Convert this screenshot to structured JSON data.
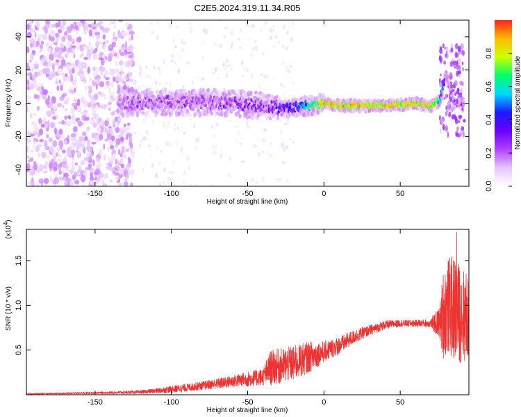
{
  "title": "C2E5.2024.319.11.34.R05",
  "chart_data": [
    {
      "type": "heatmap",
      "name": "spectrogram",
      "xlabel": "Height of straight line (km)",
      "ylabel": "Frequency (Hz)",
      "xlim": [
        -195,
        95
      ],
      "ylim": [
        -50,
        50
      ],
      "xticks": [
        -150,
        -100,
        -50,
        0,
        50
      ],
      "yticks": [
        -40,
        -20,
        0,
        20,
        40
      ],
      "colorbar": {
        "label": "Normalized spectral amplitude",
        "range": [
          0,
          1
        ],
        "ticks": [
          0.0,
          0.2,
          0.4,
          0.6,
          0.8
        ],
        "tick_labels": [
          "0.0",
          "0.2",
          "0.4",
          "0.6",
          "0.8"
        ],
        "colors": [
          "#ffffff",
          "#e6c6ff",
          "#b040ff",
          "#6a00ff",
          "#1a1aff",
          "#00d8ff",
          "#00ff66",
          "#ccff00",
          "#ffbb00",
          "#ff2020"
        ]
      },
      "ridge": [
        {
          "x": -135,
          "f": 0.0,
          "a": 0.25
        },
        {
          "x": -120,
          "f": 0.5,
          "a": 0.3
        },
        {
          "x": -100,
          "f": 0.5,
          "a": 0.3
        },
        {
          "x": -80,
          "f": 0.5,
          "a": 0.32
        },
        {
          "x": -60,
          "f": 0.0,
          "a": 0.35
        },
        {
          "x": -40,
          "f": -1.5,
          "a": 0.35
        },
        {
          "x": -25,
          "f": -3.0,
          "a": 0.45
        },
        {
          "x": -15,
          "f": -2.0,
          "a": 0.6
        },
        {
          "x": -5,
          "f": -1.0,
          "a": 0.8
        },
        {
          "x": 0,
          "f": 0.0,
          "a": 0.95
        },
        {
          "x": 10,
          "f": -1.5,
          "a": 0.95
        },
        {
          "x": 30,
          "f": -1.5,
          "a": 0.95
        },
        {
          "x": 50,
          "f": -1.0,
          "a": 0.9
        },
        {
          "x": 60,
          "f": 0.0,
          "a": 0.95
        },
        {
          "x": 70,
          "f": -2.0,
          "a": 0.9
        },
        {
          "x": 76,
          "f": 2.0,
          "a": 0.7
        },
        {
          "x": 80,
          "f": 18.0,
          "a": 0.3
        },
        {
          "x": 85,
          "f": 0.0,
          "a": 0.35
        },
        {
          "x": 92,
          "f": 0.0,
          "a": 0.3
        }
      ]
    },
    {
      "type": "line",
      "name": "snr",
      "xlabel": "Height of straight line (km)",
      "ylabel": "SNR (10 * v/v)",
      "multiplier": "(x10^4)",
      "multiplier_base": "(x10",
      "multiplier_exp": "4",
      "multiplier_close": ")",
      "xlim": [
        -195,
        95
      ],
      "ylim": [
        0,
        1.85
      ],
      "xticks": [
        -150,
        -100,
        -50,
        0,
        50
      ],
      "yticks": [
        0.5,
        1.0,
        1.5
      ],
      "ytick_labels": [
        "0.5",
        "1.0",
        "1.5"
      ],
      "color": "#ee3333",
      "envelope": {
        "x": [
          -195,
          -150,
          -120,
          -100,
          -80,
          -60,
          -40,
          -35,
          -20,
          -10,
          0,
          10,
          20,
          30,
          40,
          50,
          60,
          70,
          76,
          78,
          82,
          86,
          90,
          95
        ],
        "level": [
          0.01,
          0.02,
          0.03,
          0.06,
          0.1,
          0.15,
          0.2,
          0.3,
          0.35,
          0.42,
          0.48,
          0.55,
          0.65,
          0.72,
          0.78,
          0.8,
          0.8,
          0.8,
          0.8,
          0.9,
          1.0,
          0.95,
          0.9,
          0.85
        ],
        "noise": [
          0.005,
          0.01,
          0.02,
          0.04,
          0.05,
          0.07,
          0.1,
          0.2,
          0.2,
          0.18,
          0.12,
          0.1,
          0.08,
          0.06,
          0.05,
          0.04,
          0.04,
          0.05,
          0.2,
          0.5,
          0.55,
          0.6,
          0.55,
          0.5
        ]
      },
      "peak": {
        "x": 87,
        "y": 1.82
      }
    }
  ]
}
